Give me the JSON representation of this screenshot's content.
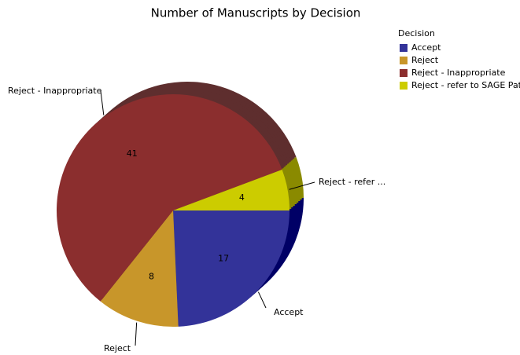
{
  "chart_data": {
    "type": "pie",
    "title": "Number of Manuscripts by Decision",
    "legend_title": "Decision",
    "legend_position": "top-right",
    "categories": [
      "Accept",
      "Reject",
      "Reject - Inappropriate",
      "Reject - refer to SAGE Path"
    ],
    "values": [
      17,
      8,
      41,
      4
    ],
    "colors": [
      "#333399",
      "#c8962a",
      "#8b2e2e",
      "#cccc00"
    ],
    "side_colors": [
      "#000066",
      "#8a6420",
      "#5e2e2e",
      "#8a8a00"
    ],
    "outer_labels": [
      "Accept",
      "Reject",
      "Reject - Inappropriate",
      "Reject - refer ..."
    ]
  }
}
